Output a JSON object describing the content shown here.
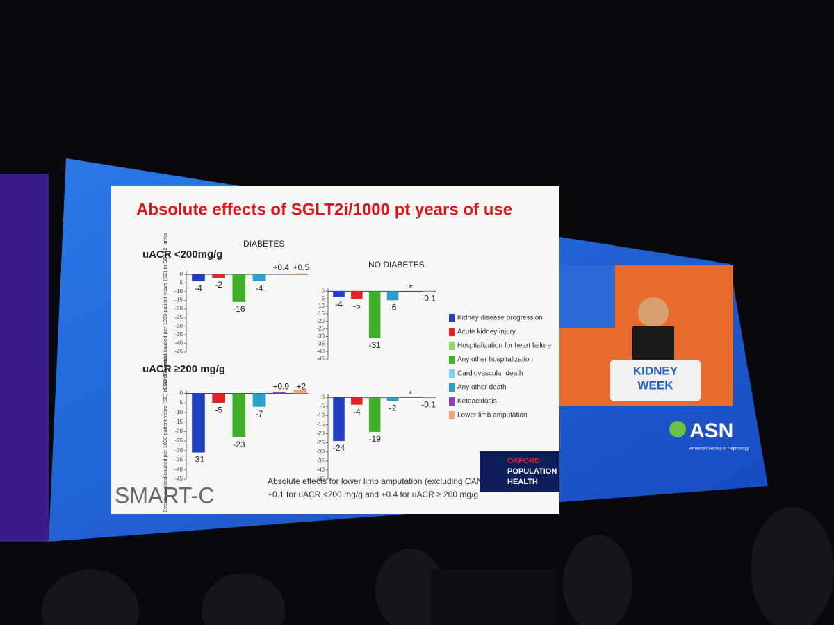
{
  "slide": {
    "title": "Absolute effects of SGLT2i/1000 pt years of use",
    "rows": [
      "uACR <200mg/g",
      "uACR ≥200 mg/g"
    ],
    "legend": [
      {
        "name": "Kidney disease progression",
        "color": "#1f3fc0"
      },
      {
        "name": "Acute kidney injury",
        "color": "#e02424"
      },
      {
        "name": "Hospitalization for heart failure",
        "color": "#8edb6a"
      },
      {
        "name": "Any other hospitalization",
        "color": "#3fae2a"
      },
      {
        "name": "Cardiovascular death",
        "color": "#7fd0ee"
      },
      {
        "name": "Any other death",
        "color": "#2a9fc8"
      },
      {
        "name": "Ketoacidosis",
        "color": "#9040c0"
      },
      {
        "name": "Lower limb amputation",
        "color": "#f4a27a"
      }
    ],
    "footnote": [
      "Absolute effects for lower limb amputation (excluding CANVAS):",
      "+0.1 for uACR <200 mg/g and +0.4 for uACR ≥ 200 mg/g"
    ],
    "brand": "SMART-C",
    "sponsor": [
      "OXFORD",
      "POPULATION",
      "HEALTH"
    ],
    "stage": {
      "event": [
        "KIDNEY",
        "WEEK"
      ],
      "society": "ASN",
      "society_name": "American Society of Nephrology"
    }
  },
  "chart_data": [
    {
      "type": "bar",
      "title": "DIABETES",
      "ylabel": "Events avoided/caused per 1000 patient years (SE) in SGLT2i arms",
      "values": [
        -4,
        -2,
        -16,
        -4,
        0.4,
        0.5
      ],
      "value_labels": [
        "-4",
        "-2",
        "-16",
        "-4",
        "+0.4",
        "+0.5"
      ],
      "colors": [
        "#1f3fc0",
        "#e02424",
        "#3fae2a",
        "#2a9fc8",
        "#9040c0",
        "#f4a27a"
      ],
      "ylim": [
        -45,
        2
      ],
      "yticks": [
        0,
        -5,
        -10,
        -15,
        -20,
        -25,
        -30,
        -35,
        -40,
        -45
      ]
    },
    {
      "type": "bar",
      "title": "NO DIABETES",
      "values": [
        -4,
        -5,
        -31,
        -6,
        null,
        -0.1
      ],
      "annotation": "*",
      "colors": [
        "#1f3fc0",
        "#e02424",
        "#3fae2a",
        "#2a9fc8",
        "#9040c0",
        "#f4a27a"
      ],
      "ylim": [
        -45,
        2
      ],
      "yticks": [
        0,
        -5,
        -10,
        -15,
        -20,
        -25,
        -30,
        -35,
        -40,
        -45
      ]
    },
    {
      "type": "bar",
      "ylabel": "Events avoided/caused per 1000 patient years (SE) in SGLT2i arms",
      "values": [
        -31,
        -5,
        -23,
        -7,
        0.9,
        2
      ],
      "value_labels": [
        "-31",
        "-5",
        "-23",
        "-7",
        "+0.9",
        "+2"
      ],
      "colors": [
        "#1f3fc0",
        "#e02424",
        "#3fae2a",
        "#2a9fc8",
        "#9040c0",
        "#f4a27a"
      ],
      "ylim": [
        -45,
        2
      ],
      "yticks": [
        0,
        -5,
        -10,
        -15,
        -20,
        -25,
        -30,
        -35,
        -40,
        -45
      ]
    },
    {
      "type": "bar",
      "values": [
        -24,
        -4,
        -19,
        -2,
        null,
        -0.1
      ],
      "annotation": "*",
      "colors": [
        "#1f3fc0",
        "#e02424",
        "#3fae2a",
        "#2a9fc8",
        "#9040c0",
        "#f4a27a"
      ],
      "ylim": [
        -45,
        2
      ],
      "yticks": [
        0,
        -5,
        -10,
        -15,
        -20,
        -25,
        -30,
        -35,
        -40,
        -45
      ]
    }
  ]
}
